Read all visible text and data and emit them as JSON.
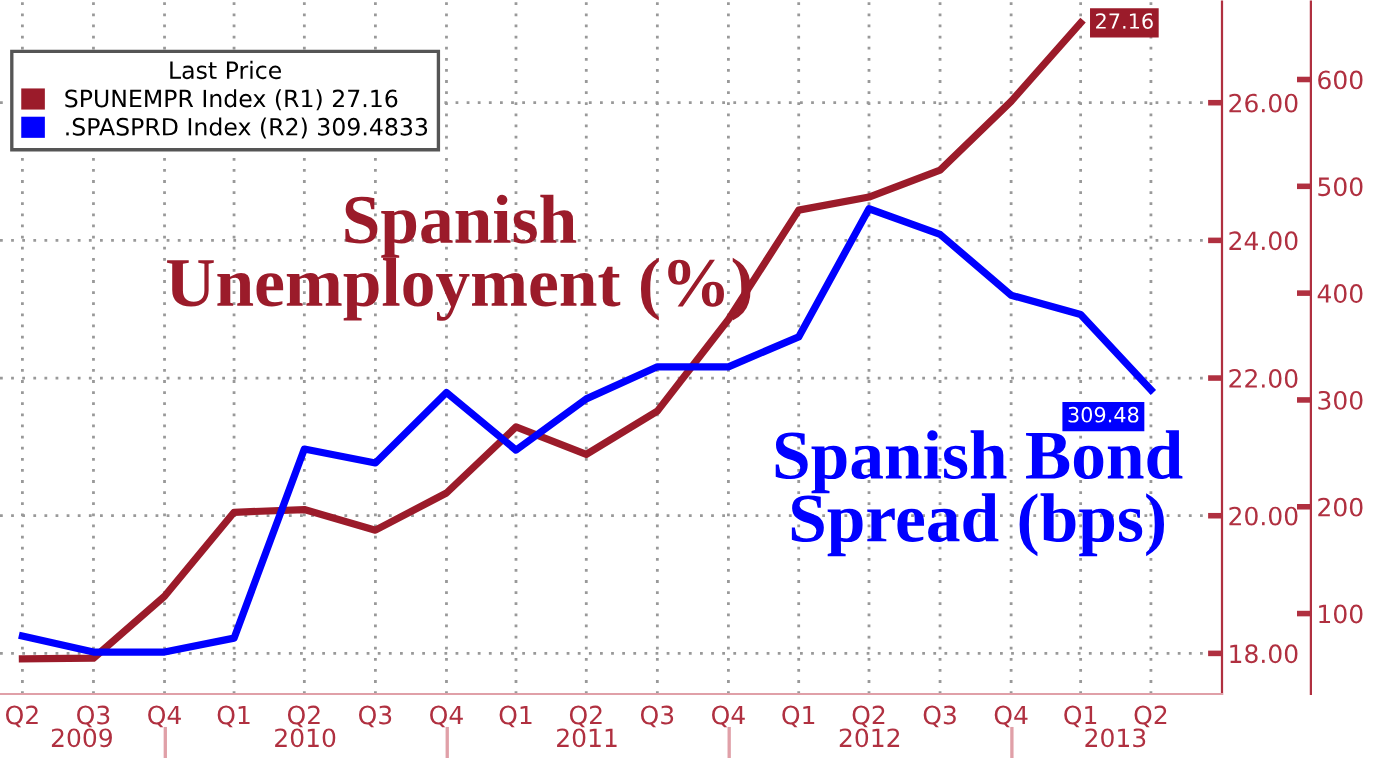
{
  "chart_data": {
    "type": "line",
    "x": [
      "2009-06-30",
      "2009-09-30",
      "2009-12-31",
      "2010-03-31",
      "2010-06-30",
      "2010-09-30",
      "2010-12-31",
      "2011-03-31",
      "2011-06-30",
      "2011-09-30",
      "2011-12-31",
      "2012-03-31",
      "2012-06-30",
      "2012-09-30",
      "2012-12-31",
      "2013-03-31",
      "2013-06-30"
    ],
    "series": [
      {
        "name": "SPUNEMPR Index (R1) 27.16",
        "color": "#9b1b2a",
        "values": [
          17.92,
          17.93,
          18.83,
          20.05,
          20.09,
          19.79,
          20.33,
          21.29,
          20.89,
          21.52,
          22.85,
          24.44,
          24.63,
          25.02,
          26.02,
          27.16,
          null
        ],
        "value_labels": [
          null,
          null,
          null,
          null,
          null,
          null,
          null,
          null,
          null,
          null,
          null,
          null,
          null,
          null,
          null,
          "27.16",
          null
        ]
      },
      {
        "name": ".SPASPRD Index (R2) 309.4833",
        "color": "#0000ff",
        "axis": "y2",
        "values": [
          79,
          64,
          64,
          77,
          254,
          241,
          307,
          253,
          301,
          331,
          331,
          359,
          479,
          455,
          398,
          380,
          309.48
        ],
        "value_labels": [
          null,
          null,
          null,
          null,
          null,
          null,
          null,
          null,
          null,
          null,
          null,
          null,
          null,
          null,
          null,
          null,
          "309.48"
        ]
      }
    ],
    "xlim": [
      "2009-06-01",
      "2013-09-30"
    ],
    "x2lim": [
      "2009-06-01",
      "2013-09-30"
    ],
    "x2ticks": [
      {
        "value": "2009-09-15",
        "label": "2009"
      },
      {
        "value": "2010-01-01",
        "label": null
      },
      {
        "value": "2010-07-01",
        "label": "2010"
      },
      {
        "value": "2011-01-01",
        "label": null
      },
      {
        "value": "2011-07-01",
        "label": "2011"
      },
      {
        "value": "2012-01-01",
        "label": null
      },
      {
        "value": "2012-07-01",
        "label": "2012"
      },
      {
        "value": "2013-01-01",
        "label": null
      },
      {
        "value": "2013-05-15",
        "label": "2013"
      }
    ],
    "xticks": [
      {
        "value": "2009-06-30",
        "label": "Q2"
      },
      {
        "value": "2009-09-30",
        "label": "Q3"
      },
      {
        "value": "2009-12-31",
        "label": "Q4"
      },
      {
        "value": "2010-03-31",
        "label": "Q1"
      },
      {
        "value": "2010-06-30",
        "label": "Q2"
      },
      {
        "value": "2010-09-30",
        "label": "Q3"
      },
      {
        "value": "2010-12-31",
        "label": "Q4"
      },
      {
        "value": "2011-03-31",
        "label": "Q1"
      },
      {
        "value": "2011-06-30",
        "label": "Q2"
      },
      {
        "value": "2011-09-30",
        "label": "Q3"
      },
      {
        "value": "2011-12-31",
        "label": "Q4"
      },
      {
        "value": "2012-03-31",
        "label": "Q1"
      },
      {
        "value": "2012-06-30",
        "label": "Q2"
      },
      {
        "value": "2012-09-30",
        "label": "Q3"
      },
      {
        "value": "2012-12-31",
        "label": "Q4"
      },
      {
        "value": "2013-03-31",
        "label": "Q1"
      },
      {
        "value": "2013-06-30",
        "label": "Q2"
      }
    ],
    "ylim": [
      17.41,
      27.47
    ],
    "yticks": [
      {
        "value": 18,
        "label": "18.00"
      },
      {
        "value": 20,
        "label": "20.00"
      },
      {
        "value": 22,
        "label": "22.00"
      },
      {
        "value": 24,
        "label": "24.00"
      },
      {
        "value": 26,
        "label": "26.00"
      }
    ],
    "y2lim": [
      24.7,
      673
    ],
    "y2ticks": [
      100,
      200,
      300,
      400,
      500,
      600
    ],
    "legend_title": "Last Price",
    "legend": "top left",
    "grid": true,
    "annotations": [
      "Spanish\nUnemployment (%)",
      "Spanish Bond\nSpread (bps)"
    ]
  }
}
